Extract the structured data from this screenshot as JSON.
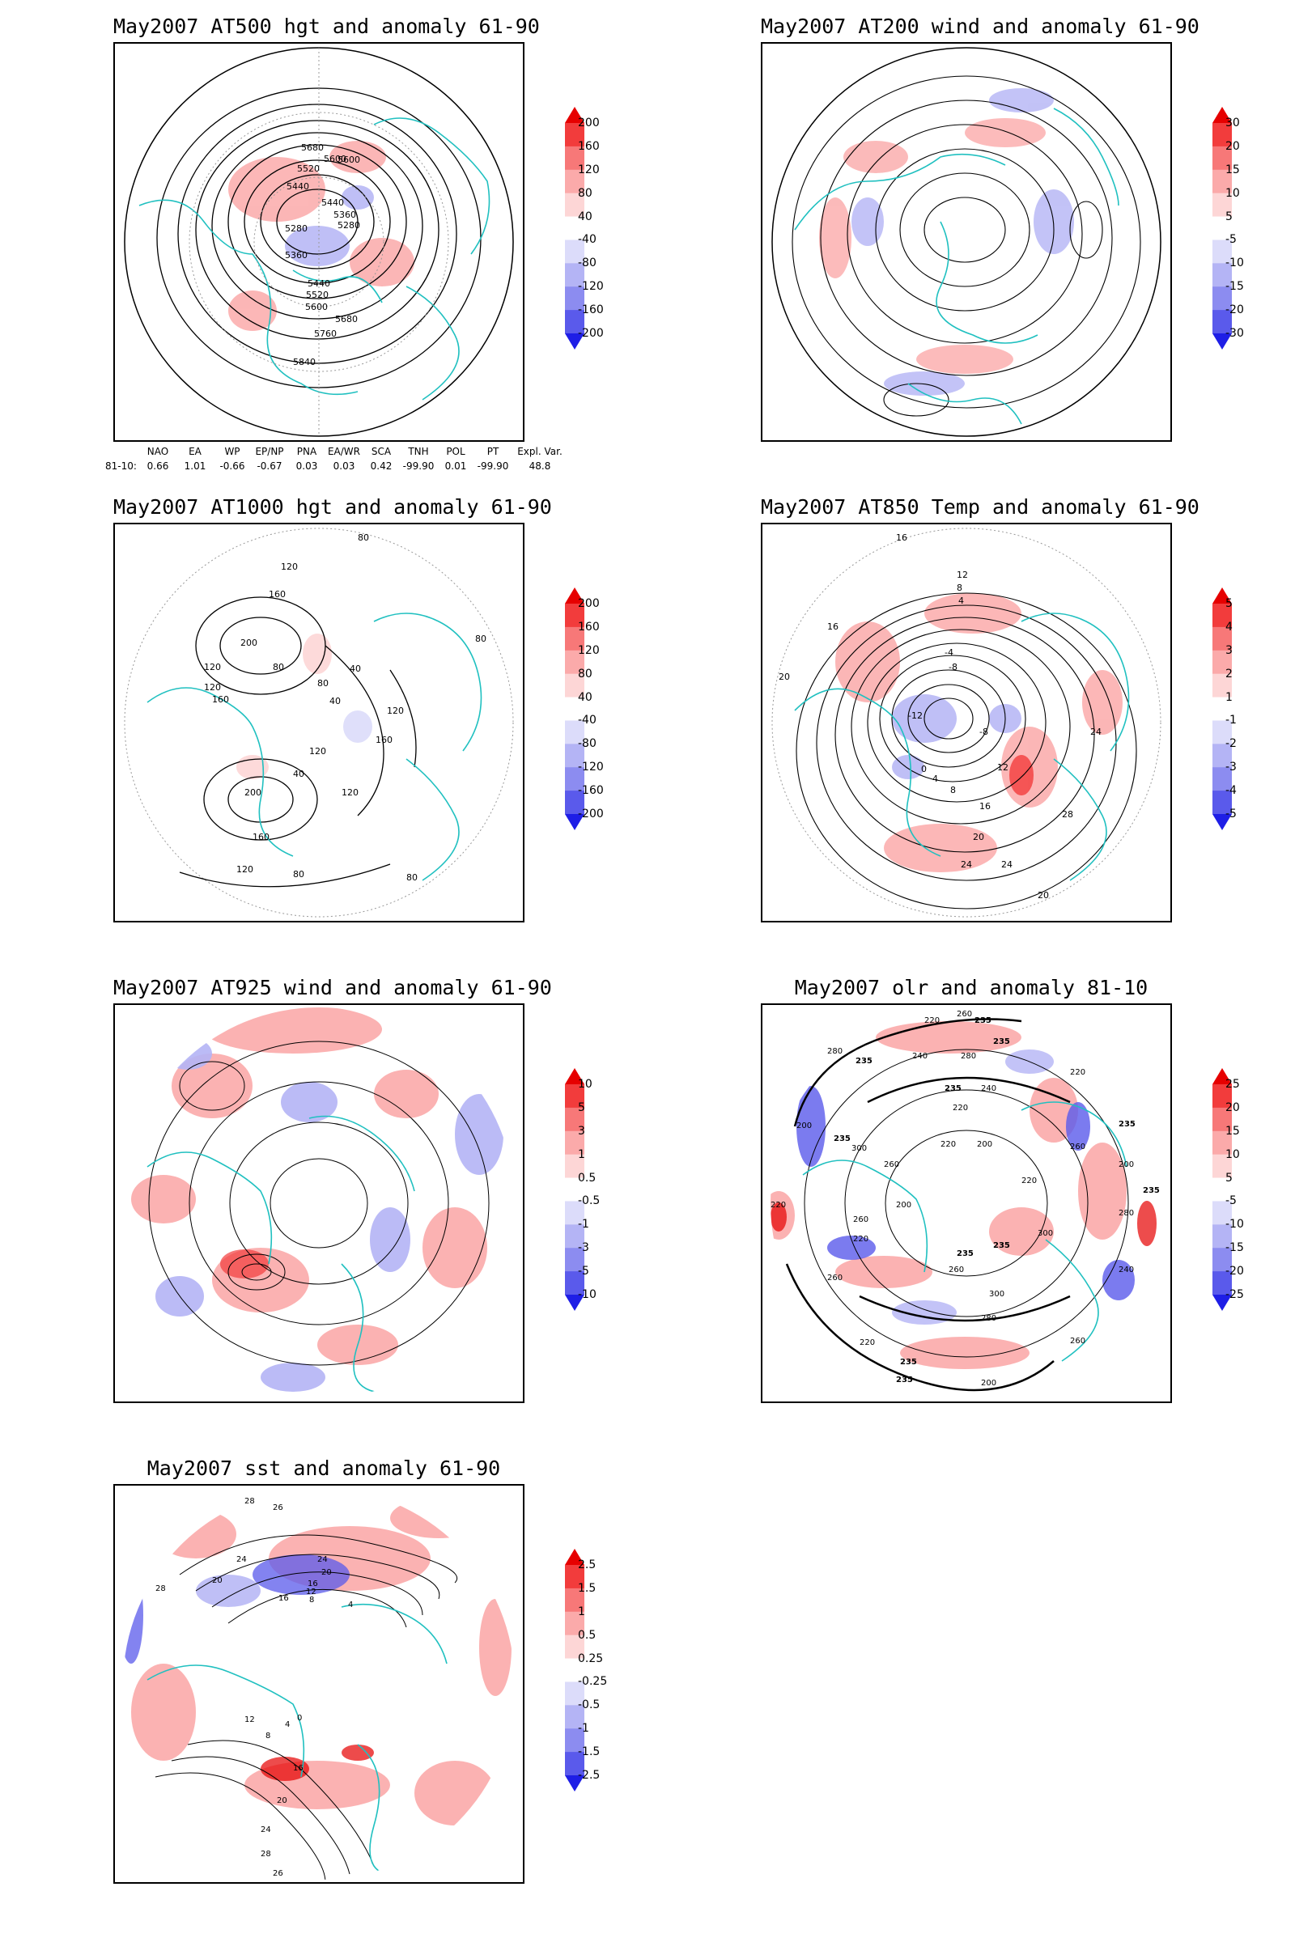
{
  "panels": [
    {
      "id": "p500",
      "title": "May2007 AT500 hgt and anomaly 61-90",
      "colorbar": [
        "200",
        "160",
        "120",
        "80",
        "40",
        "-40",
        "-80",
        "-120",
        "-160",
        "-200"
      ],
      "contour_labels": [
        "5680",
        "5600",
        "5600",
        "5520",
        "5440",
        "5440",
        "5360",
        "5280",
        "5280",
        "5360",
        "5440",
        "5520",
        "5600",
        "5680",
        "5760",
        "5840"
      ]
    },
    {
      "id": "p200",
      "title": "May2007 AT200 wind and anomaly 61-90",
      "colorbar": [
        "30",
        "20",
        "15",
        "10",
        "5",
        "-5",
        "-10",
        "-15",
        "-20",
        "-30"
      ],
      "contour_labels": []
    },
    {
      "id": "p1000",
      "title": "May2007 AT1000 hgt and anomaly 61-90",
      "colorbar": [
        "200",
        "160",
        "120",
        "80",
        "40",
        "-40",
        "-80",
        "-120",
        "-160",
        "-200"
      ],
      "contour_labels": [
        "80",
        "120",
        "160",
        "200",
        "80",
        "120",
        "120",
        "160",
        "40",
        "80",
        "40",
        "120",
        "160",
        "120",
        "40",
        "120",
        "200",
        "160",
        "120",
        "80",
        "80",
        "80"
      ]
    },
    {
      "id": "p850",
      "title": "May2007 AT850 Temp and anomaly 61-90",
      "colorbar": [
        "5",
        "4",
        "3",
        "2",
        "1",
        "-1",
        "-2",
        "-3",
        "-4",
        "-5"
      ],
      "contour_labels": [
        "16",
        "12",
        "8",
        "4",
        "16",
        "20",
        "-4",
        "-8",
        "-12",
        "-8",
        "0",
        "4",
        "8",
        "12",
        "24",
        "28",
        "16",
        "20",
        "24",
        "24",
        "20"
      ]
    },
    {
      "id": "p925",
      "title": "May2007 AT925 wind and anomaly 61-90",
      "colorbar": [
        "10",
        "5",
        "3",
        "1",
        "0.5",
        "-0.5",
        "-1",
        "-3",
        "-5",
        "-10"
      ],
      "contour_labels": []
    },
    {
      "id": "polr",
      "title": "May2007 olr and anomaly 81-10",
      "colorbar": [
        "25",
        "20",
        "15",
        "10",
        "5",
        "-5",
        "-10",
        "-15",
        "-20",
        "-25"
      ],
      "contour_labels": [
        "260",
        "220",
        "235",
        "280",
        "235",
        "240",
        "280",
        "235",
        "220",
        "200",
        "240",
        "235",
        "220",
        "235",
        "300",
        "260",
        "220",
        "200",
        "220",
        "260",
        "235",
        "200",
        "235",
        "220",
        "200",
        "260",
        "220",
        "280",
        "300",
        "235",
        "260",
        "240",
        "260",
        "235",
        "300",
        "280",
        "220",
        "235",
        "235",
        "260",
        "200"
      ]
    },
    {
      "id": "psst",
      "title": "May2007 sst and anomaly 61-90",
      "colorbar": [
        "2.5",
        "1.5",
        "1",
        "0.5",
        "0.25",
        "-0.25",
        "-0.5",
        "-1",
        "-1.5",
        "-2.5"
      ],
      "contour_labels": [
        "28",
        "26",
        "24",
        "20",
        "16",
        "12",
        "8",
        "4",
        "28",
        "24",
        "20",
        "16",
        "12",
        "8",
        "4",
        "0",
        "16",
        "20",
        "24",
        "28",
        "26"
      ]
    }
  ],
  "indices": {
    "headers": [
      "NAO",
      "EA",
      "WP",
      "EP/NP",
      "PNA",
      "EA/WR",
      "SCA",
      "TNH",
      "POL",
      "PT",
      "Expl. Var."
    ],
    "row_label": "81-10:",
    "values": [
      "0.66",
      "1.01",
      "-0.66",
      "-0.67",
      "0.03",
      "0.03",
      "0.42",
      "-99.90",
      "0.01",
      "-99.90",
      "48.8"
    ]
  },
  "colors": {
    "red_scale": [
      "#e60000",
      "#f23c3c",
      "#f77878",
      "#fbaaaa",
      "#fdd6d6"
    ],
    "white": "#ffffff",
    "blue_scale": [
      "#dcdcfa",
      "#b4b4f5",
      "#8c8cf0",
      "#5a5aeb",
      "#1e1ee6"
    ],
    "coast": "#20c0c0",
    "contour": "#000000"
  }
}
